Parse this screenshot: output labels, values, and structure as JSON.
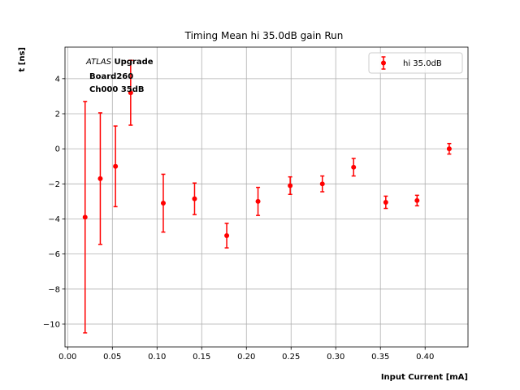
{
  "chart_data": {
    "type": "scatter",
    "title": "Timing Mean hi 35.0dB gain Run",
    "xlabel": "Input Current [mA]",
    "ylabel": "t [ns]",
    "xlim": [
      -0.003,
      0.448
    ],
    "ylim": [
      -11.3,
      5.8
    ],
    "xticks": [
      0.0,
      0.05,
      0.1,
      0.15,
      0.2,
      0.25,
      0.3,
      0.35,
      0.4
    ],
    "xtick_labels": [
      "0.00",
      "0.05",
      "0.10",
      "0.15",
      "0.20",
      "0.25",
      "0.30",
      "0.35",
      "0.40"
    ],
    "yticks": [
      -10,
      -8,
      -6,
      -4,
      -2,
      0,
      2,
      4
    ],
    "ytick_labels": [
      "−10",
      "−8",
      "−6",
      "−4",
      "−2",
      "0",
      "2",
      "4"
    ],
    "grid": true,
    "legend_position": "top-right",
    "annotation": {
      "atlas": "ATLAS",
      "upgrade": "Upgrade",
      "line2": "Board260",
      "line3": "Ch000 35dB"
    },
    "series": [
      {
        "name": "hi 35.0dB",
        "color": "#ff0000",
        "marker": "circle",
        "points": [
          {
            "x": 0.0195,
            "y": -3.9,
            "err": 6.6
          },
          {
            "x": 0.0365,
            "y": -1.7,
            "err": 3.75
          },
          {
            "x": 0.0535,
            "y": -1.0,
            "err": 2.3
          },
          {
            "x": 0.0705,
            "y": 3.2,
            "err": 1.85
          },
          {
            "x": 0.107,
            "y": -3.1,
            "err": 1.65
          },
          {
            "x": 0.142,
            "y": -2.85,
            "err": 0.9
          },
          {
            "x": 0.178,
            "y": -4.95,
            "err": 0.7
          },
          {
            "x": 0.213,
            "y": -3.0,
            "err": 0.8
          },
          {
            "x": 0.249,
            "y": -2.1,
            "err": 0.5
          },
          {
            "x": 0.285,
            "y": -2.0,
            "err": 0.45
          },
          {
            "x": 0.32,
            "y": -1.05,
            "err": 0.5
          },
          {
            "x": 0.356,
            "y": -3.05,
            "err": 0.35
          },
          {
            "x": 0.391,
            "y": -2.95,
            "err": 0.3
          },
          {
            "x": 0.427,
            "y": 0.0,
            "err": 0.3
          }
        ]
      }
    ]
  }
}
